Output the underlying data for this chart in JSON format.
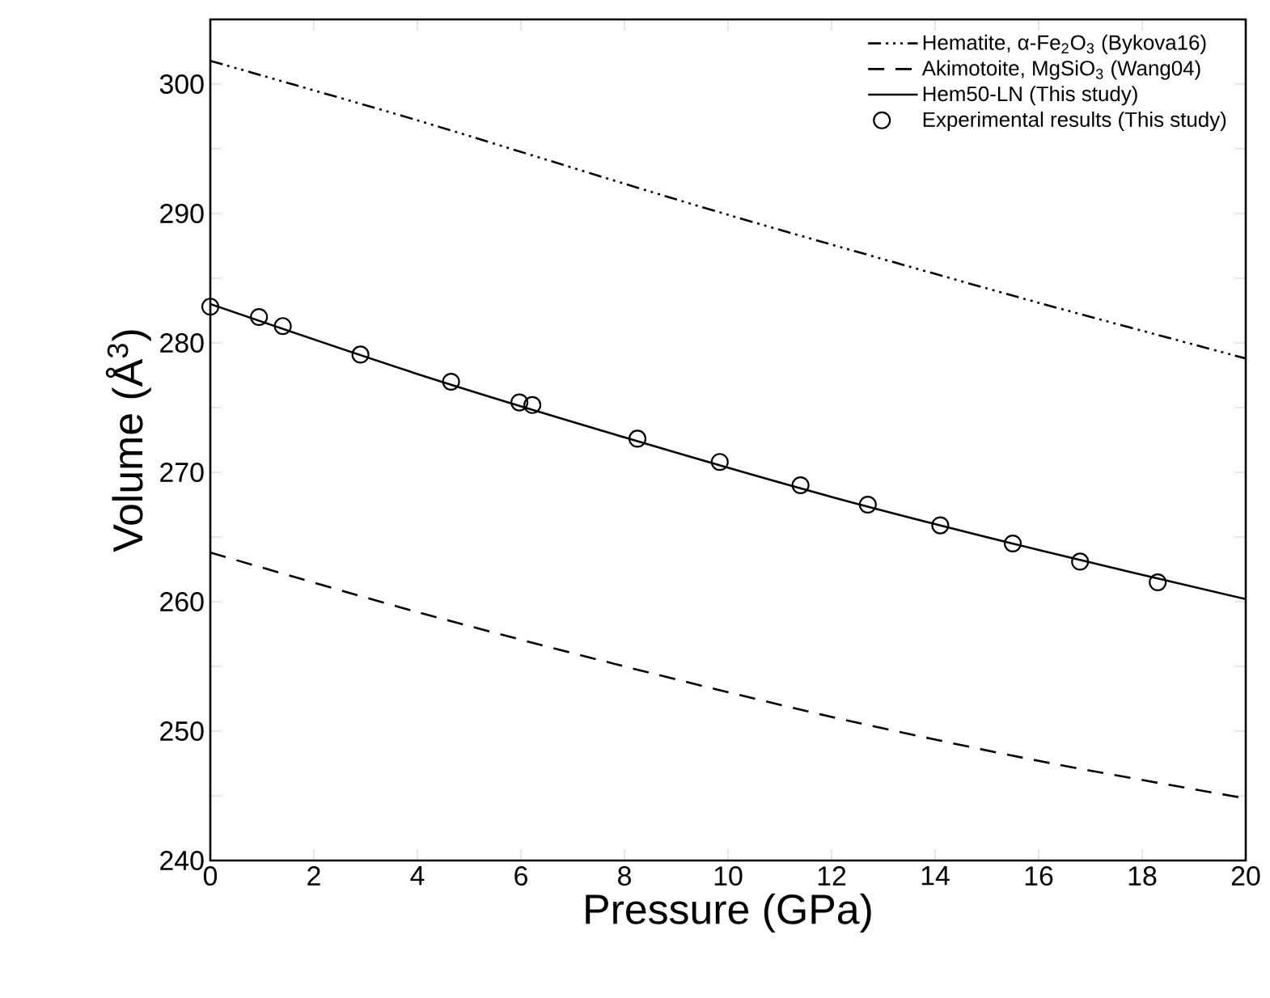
{
  "chart_data": {
    "type": "line",
    "xlabel": "Pressure (GPa)",
    "ylabel": "Volume (Å$^{3}$)",
    "xlim": [
      0,
      20
    ],
    "ylim": [
      240,
      305
    ],
    "xticks": [
      0,
      2,
      4,
      6,
      8,
      10,
      12,
      14,
      16,
      18,
      20
    ],
    "yticks": [
      240,
      {
        "value": 245,
        "label": null
      },
      250,
      {
        "value": 255,
        "label": null
      },
      260,
      {
        "value": 265,
        "label": null
      },
      270,
      {
        "value": 275,
        "label": null
      },
      280,
      {
        "value": 285,
        "label": null
      },
      290,
      {
        "value": 295,
        "label": null
      },
      300
    ],
    "legend": "top right",
    "series": [
      {
        "name": "Hematite, α-Fe$_{2}$O$_{3}$ (Bykova16)",
        "color": "#000000",
        "line_style": "dashdotdotted",
        "x": [
          0,
          4,
          8,
          10,
          12,
          16,
          20
        ],
        "values": [
          301.8,
          297.2,
          292.3,
          289.9,
          287.6,
          283.1,
          278.8
        ]
      },
      {
        "name": "Akimotoite, MgSiO$_{3}$ (Wang04)",
        "color": "#000000",
        "line_style": "dashed",
        "x": [
          0,
          4,
          8,
          12,
          16,
          20
        ],
        "values": [
          263.8,
          259.2,
          255.0,
          251.1,
          247.7,
          244.8
        ]
      },
      {
        "name": "Hem50-LN (This study)",
        "color": "#000000",
        "line_style": "solid",
        "x": [
          0,
          4,
          8,
          12,
          16,
          20
        ],
        "values": [
          283.0,
          277.6,
          272.7,
          268.1,
          264.0,
          260.2
        ]
      },
      {
        "name": "Experimental results (This study)",
        "type": "scatter",
        "color": "#000000",
        "marker": "circle",
        "x": [
          0,
          0.94,
          1.4,
          2.9,
          4.65,
          5.97,
          6.22,
          8.25,
          9.84,
          11.4,
          12.7,
          14.1,
          15.5,
          16.8,
          18.3
        ],
        "values": [
          282.8,
          282.0,
          281.3,
          279.1,
          277.0,
          275.4,
          275.2,
          272.6,
          270.8,
          269.0,
          267.5,
          265.9,
          264.5,
          263.1,
          261.5
        ]
      }
    ]
  }
}
